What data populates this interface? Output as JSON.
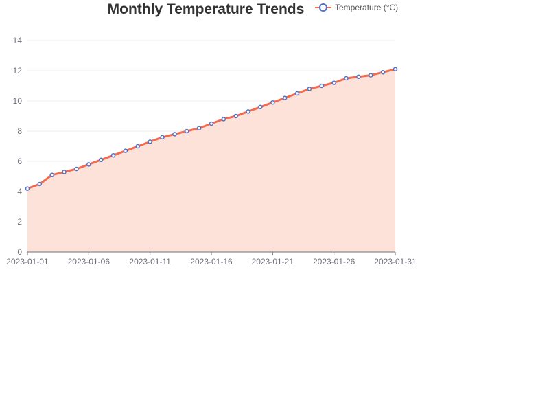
{
  "chart_data": {
    "type": "area",
    "title": "Monthly Temperature Trends",
    "xlabel": "",
    "ylabel": "",
    "legend": "top-right",
    "grid": true,
    "ylim": [
      0,
      14
    ],
    "y_ticks": [
      "0",
      "2",
      "4",
      "6",
      "8",
      "10",
      "12",
      "14"
    ],
    "x_tick_labels": [
      "2023-01-01",
      "2023-01-06",
      "2023-01-11",
      "2023-01-16",
      "2023-01-21",
      "2023-01-26",
      "2023-01-31"
    ],
    "x": [
      "2023-01-01",
      "2023-01-02",
      "2023-01-03",
      "2023-01-04",
      "2023-01-05",
      "2023-01-06",
      "2023-01-07",
      "2023-01-08",
      "2023-01-09",
      "2023-01-10",
      "2023-01-11",
      "2023-01-12",
      "2023-01-13",
      "2023-01-14",
      "2023-01-15",
      "2023-01-16",
      "2023-01-17",
      "2023-01-18",
      "2023-01-19",
      "2023-01-20",
      "2023-01-21",
      "2023-01-22",
      "2023-01-23",
      "2023-01-24",
      "2023-01-25",
      "2023-01-26",
      "2023-01-27",
      "2023-01-28",
      "2023-01-29",
      "2023-01-30",
      "2023-01-31"
    ],
    "series": [
      {
        "name": "Temperature (°C)",
        "line_color": "#f46a4e",
        "fill_color": "#fde2d9",
        "marker_color": "#5470c6",
        "values": [
          4.2,
          4.5,
          5.1,
          5.3,
          5.5,
          5.8,
          6.1,
          6.4,
          6.7,
          7.0,
          7.3,
          7.6,
          7.8,
          8.0,
          8.2,
          8.5,
          8.8,
          9.0,
          9.3,
          9.6,
          9.9,
          10.2,
          10.5,
          10.8,
          11.0,
          11.2,
          11.5,
          11.6,
          11.7,
          11.9,
          12.1
        ]
      }
    ]
  }
}
